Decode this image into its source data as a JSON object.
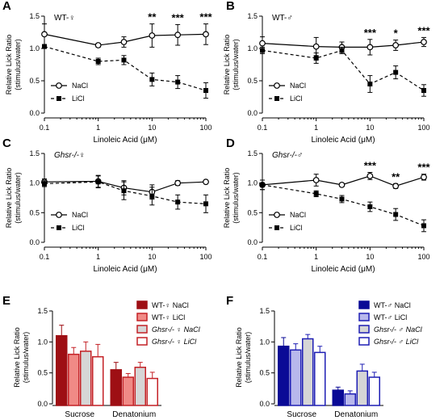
{
  "figure": {
    "panel_labels": [
      "A",
      "B",
      "C",
      "D",
      "E",
      "F"
    ]
  },
  "chart_data": [
    {
      "id": "A",
      "type": "line",
      "title": "WT-♀",
      "xlabel": "Linoleic Acid (μM)",
      "ylabel": "Relative Lick Ratio\n(stimulus/water)",
      "xscale": "log",
      "xlim": [
        0.1,
        100
      ],
      "ylim": [
        0,
        1.5
      ],
      "x_ticks": [
        "0.1",
        "1",
        "10",
        "100"
      ],
      "y_ticks": [
        "0.0",
        "0.5",
        "1.0",
        "1.5"
      ],
      "x": [
        0.1,
        1,
        3,
        10,
        30,
        100
      ],
      "legend_position": "bottom-left",
      "series": [
        {
          "name": "NaCl",
          "marker": "open-circle",
          "line": "solid",
          "values": [
            1.22,
            1.05,
            1.1,
            1.2,
            1.21,
            1.22
          ],
          "errors": [
            0.16,
            0.03,
            0.08,
            0.18,
            0.16,
            0.16
          ]
        },
        {
          "name": "LiCl",
          "marker": "filled-square",
          "line": "dashed",
          "values": [
            1.03,
            0.8,
            0.82,
            0.52,
            0.48,
            0.35
          ],
          "errors": [
            0.03,
            0.05,
            0.07,
            0.1,
            0.1,
            0.12
          ]
        }
      ],
      "significance": [
        {
          "x": 10,
          "label": "**"
        },
        {
          "x": 30,
          "label": "***"
        },
        {
          "x": 100,
          "label": "***"
        }
      ]
    },
    {
      "id": "B",
      "type": "line",
      "title": "WT-♂",
      "xlabel": "Linoleic Acid (μM)",
      "ylabel": "Relative Lick Ratio\n(stimulus/water)",
      "xscale": "log",
      "xlim": [
        0.1,
        100
      ],
      "ylim": [
        0,
        1.5
      ],
      "x_ticks": [
        "0.1",
        "1",
        "10",
        "100"
      ],
      "y_ticks": [
        "0.0",
        "0.5",
        "1.0",
        "1.5"
      ],
      "x": [
        0.1,
        1,
        3,
        10,
        30,
        100
      ],
      "legend_position": "bottom-left",
      "series": [
        {
          "name": "NaCl",
          "marker": "open-circle",
          "line": "solid",
          "values": [
            1.08,
            1.03,
            1.02,
            1.02,
            1.05,
            1.1
          ],
          "errors": [
            0.1,
            0.14,
            0.08,
            0.12,
            0.08,
            0.07
          ]
        },
        {
          "name": "LiCl",
          "marker": "filled-square",
          "line": "dashed",
          "values": [
            0.97,
            0.85,
            0.97,
            0.45,
            0.63,
            0.35
          ],
          "errors": [
            0.05,
            0.08,
            0.05,
            0.13,
            0.1,
            0.09
          ]
        }
      ],
      "significance": [
        {
          "x": 10,
          "label": "***"
        },
        {
          "x": 30,
          "label": "*"
        },
        {
          "x": 100,
          "label": "***"
        }
      ]
    },
    {
      "id": "C",
      "type": "line",
      "title": "Ghsr-/-♀",
      "xlabel": "Linoleic Acid (μM)",
      "ylabel": "Relative Lick Ratio\n(stimulus/water)",
      "xscale": "log",
      "xlim": [
        0.1,
        100
      ],
      "ylim": [
        0,
        1.5
      ],
      "x_ticks": [
        "0.1",
        "1",
        "10",
        "100"
      ],
      "y_ticks": [
        "0.0",
        "0.5",
        "1.0",
        "1.5"
      ],
      "x": [
        0.1,
        1,
        3,
        10,
        30,
        100
      ],
      "legend_position": "bottom-left",
      "series": [
        {
          "name": "NaCl",
          "marker": "open-circle",
          "line": "solid",
          "values": [
            1.02,
            1.03,
            0.92,
            0.85,
            1.0,
            1.02
          ],
          "errors": [
            0.05,
            0.1,
            0.12,
            0.12,
            0.04,
            0.03
          ]
        },
        {
          "name": "LiCl",
          "marker": "filled-square",
          "line": "dashed",
          "values": [
            0.99,
            1.02,
            0.87,
            0.78,
            0.68,
            0.65
          ],
          "errors": [
            0.05,
            0.1,
            0.15,
            0.15,
            0.12,
            0.15
          ]
        }
      ],
      "significance": []
    },
    {
      "id": "D",
      "type": "line",
      "title": "Ghsr-/-♂",
      "xlabel": "Linoleic Acid (μM)",
      "ylabel": "Relative Lick Ratio\n(stimulus/water)",
      "xscale": "log",
      "xlim": [
        0.1,
        100
      ],
      "ylim": [
        0,
        1.5
      ],
      "x_ticks": [
        "0.1",
        "1",
        "10",
        "100"
      ],
      "y_ticks": [
        "0.0",
        "0.5",
        "1.0",
        "1.5"
      ],
      "x": [
        0.1,
        1,
        3,
        10,
        30,
        100
      ],
      "legend_position": "bottom-left",
      "series": [
        {
          "name": "NaCl",
          "marker": "open-circle",
          "line": "solid",
          "values": [
            0.97,
            1.05,
            0.97,
            1.12,
            0.95,
            1.1
          ],
          "errors": [
            0.08,
            0.1,
            0.03,
            0.06,
            0.04,
            0.05
          ]
        },
        {
          "name": "LiCl",
          "marker": "filled-square",
          "line": "dashed",
          "values": [
            0.97,
            0.82,
            0.73,
            0.6,
            0.47,
            0.28
          ],
          "errors": [
            0.08,
            0.05,
            0.06,
            0.08,
            0.1,
            0.1
          ]
        }
      ],
      "significance": [
        {
          "x": 10,
          "label": "***"
        },
        {
          "x": 30,
          "label": "**"
        },
        {
          "x": 100,
          "label": "***"
        }
      ]
    },
    {
      "id": "E",
      "type": "bar",
      "ylabel": "Relative Lick Ratio\n(stimulus/water)",
      "ylim": [
        0,
        1.5
      ],
      "y_ticks": [
        "0.0",
        "0.5",
        "1.0",
        "1.5"
      ],
      "categories": [
        "Sucrose",
        "Denatonium"
      ],
      "legend_position": "top-right",
      "series": [
        {
          "name": "WT-♀ NaCl",
          "fill": "#9e0f14",
          "stroke": "#9e0f14",
          "values": [
            1.1,
            0.55
          ],
          "errors": [
            0.17,
            0.12
          ]
        },
        {
          "name": "WT-♀ LiCl",
          "fill": "#f08a86",
          "stroke": "#c42126",
          "values": [
            0.8,
            0.43
          ],
          "errors": [
            0.11,
            0.06
          ]
        },
        {
          "name": "Ghsr-/- ♀ NaCl",
          "fill": "#d6d6d6",
          "stroke": "#c42126",
          "values": [
            0.85,
            0.59
          ],
          "errors": [
            0.15,
            0.08
          ]
        },
        {
          "name": "Ghsr-/- ♀ LiCl",
          "fill": "#ffffff",
          "stroke": "#c42126",
          "values": [
            0.76,
            0.41
          ],
          "errors": [
            0.2,
            0.1
          ]
        }
      ]
    },
    {
      "id": "F",
      "type": "bar",
      "ylabel": "Relative Lick Ratio\n(stimulus/water)",
      "ylim": [
        0,
        1.5
      ],
      "y_ticks": [
        "0.0",
        "0.5",
        "1.0",
        "1.5"
      ],
      "categories": [
        "Sucrose",
        "Denatonium"
      ],
      "legend_position": "top-right",
      "series": [
        {
          "name": "WT-♂ NaCl",
          "fill": "#0a0a96",
          "stroke": "#0a0a96",
          "values": [
            0.93,
            0.22
          ],
          "errors": [
            0.14,
            0.05
          ]
        },
        {
          "name": "WT-♂ LiCl",
          "fill": "#b8b8ec",
          "stroke": "#1e1eb4",
          "values": [
            0.87,
            0.16
          ],
          "errors": [
            0.1,
            0.05
          ]
        },
        {
          "name": "Ghsr-/- ♂ NaCl",
          "fill": "#d6d6d6",
          "stroke": "#1e1eb4",
          "values": [
            1.05,
            0.53
          ],
          "errors": [
            0.07,
            0.11
          ]
        },
        {
          "name": "Ghsr-/- ♂ LiCl",
          "fill": "#ffffff",
          "stroke": "#1e1eb4",
          "values": [
            0.83,
            0.43
          ],
          "errors": [
            0.1,
            0.08
          ]
        }
      ]
    }
  ]
}
